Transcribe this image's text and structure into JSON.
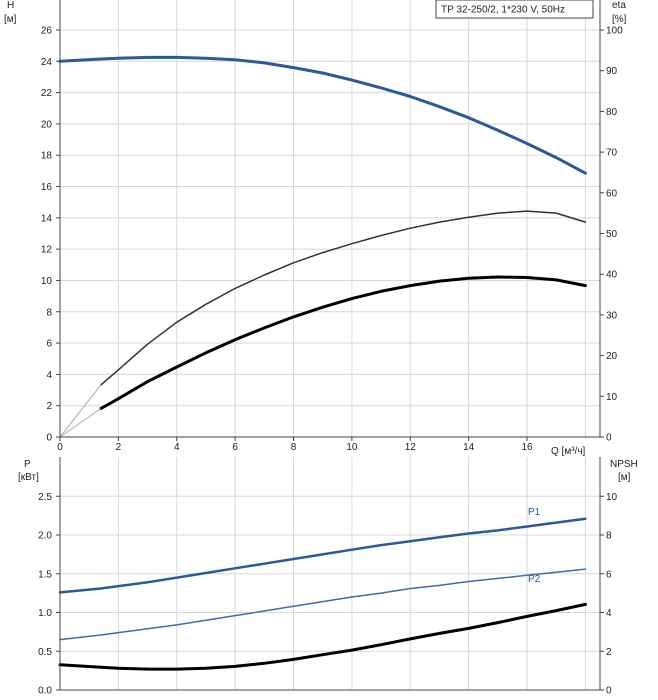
{
  "chart_data": [
    {
      "type": "line",
      "title": "TP 32-250/2, 1*230 V, 50Hz",
      "xlabel": "Q [м³/ч]",
      "ylabel_left": [
        "H",
        "[м]"
      ],
      "ylabel_right": [
        "eta",
        "[%]"
      ],
      "xlim": [
        0,
        18.5
      ],
      "ylim_left": [
        0,
        26
      ],
      "ylim_right": [
        0,
        100
      ],
      "x_ticks": [
        0,
        2,
        4,
        6,
        8,
        10,
        12,
        14,
        16
      ],
      "y_ticks_left": [
        0,
        2,
        4,
        6,
        8,
        10,
        12,
        14,
        16,
        18,
        20,
        22,
        24,
        26
      ],
      "y_ticks_right": [
        0,
        10,
        20,
        30,
        40,
        50,
        60,
        70,
        80,
        90,
        100
      ],
      "grid": true,
      "series": [
        {
          "axis": "left",
          "color": "#2a5a9a",
          "width": 3,
          "x": [
            0,
            1.4,
            2,
            3,
            4,
            5,
            6,
            7,
            8,
            9,
            10,
            11,
            12,
            13,
            14,
            15,
            16,
            17,
            18
          ],
          "y": [
            24.0,
            24.15,
            24.2,
            24.25,
            24.25,
            24.2,
            24.1,
            23.9,
            23.6,
            23.25,
            22.8,
            22.3,
            21.75,
            21.1,
            20.4,
            19.6,
            18.75,
            17.85,
            16.85
          ]
        },
        {
          "axis": "right",
          "color": "#333333",
          "width": 1.5,
          "x": [
            1.4,
            2,
            3,
            4,
            5,
            6,
            7,
            8,
            9,
            10,
            11,
            12,
            13,
            14,
            15,
            16,
            17,
            18
          ],
          "y": [
            12.8,
            16.5,
            22.8,
            28.2,
            32.6,
            36.5,
            39.8,
            42.8,
            45.3,
            47.5,
            49.5,
            51.3,
            52.8,
            54.0,
            55.0,
            55.5,
            55.0,
            52.8
          ]
        },
        {
          "axis": "right",
          "color": "#000000",
          "width": 3,
          "x": [
            1.4,
            2,
            3,
            4,
            5,
            6,
            7,
            8,
            9,
            10,
            11,
            12,
            13,
            14,
            15,
            16,
            17,
            18
          ],
          "y": [
            7.0,
            9.4,
            13.6,
            17.2,
            20.7,
            23.9,
            26.8,
            29.5,
            31.9,
            34.0,
            35.8,
            37.2,
            38.3,
            39.0,
            39.3,
            39.2,
            38.6,
            37.2
          ]
        }
      ]
    },
    {
      "type": "line",
      "xlabel": "",
      "ylabel_left": [
        "P",
        "[кВт]"
      ],
      "ylabel_right": [
        "NPSH",
        "[м]"
      ],
      "xlim": [
        0,
        18.5
      ],
      "ylim_left": [
        0,
        2.8
      ],
      "ylim_right": [
        0,
        11.2
      ],
      "y_ticks_left": [
        0.0,
        0.5,
        1.0,
        1.5,
        2.0,
        2.5
      ],
      "y_ticks_left_labels": [
        "0.0",
        "0.5",
        "1.0",
        "1.5",
        "2.0",
        "2.5"
      ],
      "y_ticks_right": [
        0,
        2,
        4,
        6,
        8,
        10
      ],
      "grid": true,
      "series": [
        {
          "name": "P1",
          "axis": "left",
          "color": "#2a5a9a",
          "width": 2.5,
          "x": [
            0,
            1.4,
            2,
            3,
            4,
            5,
            6,
            7,
            8,
            9,
            10,
            11,
            12,
            13,
            14,
            15,
            16,
            17,
            18
          ],
          "y": [
            1.26,
            1.31,
            1.34,
            1.39,
            1.45,
            1.51,
            1.57,
            1.63,
            1.69,
            1.75,
            1.81,
            1.87,
            1.92,
            1.97,
            2.02,
            2.06,
            2.11,
            2.16,
            2.21
          ]
        },
        {
          "name": "P2",
          "axis": "left",
          "color": "#3d6ea8",
          "width": 1.5,
          "x": [
            0,
            1.4,
            2,
            3,
            4,
            5,
            6,
            7,
            8,
            9,
            10,
            11,
            12,
            13,
            14,
            15,
            16,
            17,
            18
          ],
          "y": [
            0.65,
            0.71,
            0.74,
            0.79,
            0.84,
            0.9,
            0.96,
            1.02,
            1.08,
            1.14,
            1.2,
            1.25,
            1.31,
            1.35,
            1.4,
            1.44,
            1.48,
            1.52,
            1.56
          ]
        },
        {
          "axis": "right",
          "color": "#000000",
          "width": 3,
          "x": [
            0,
            1.4,
            2,
            3,
            4,
            5,
            6,
            7,
            8,
            9,
            10,
            11,
            12,
            13,
            14,
            15,
            16,
            17,
            18
          ],
          "y": [
            1.3,
            1.17,
            1.12,
            1.08,
            1.08,
            1.12,
            1.22,
            1.38,
            1.58,
            1.82,
            2.06,
            2.34,
            2.64,
            2.92,
            3.18,
            3.48,
            3.8,
            4.1,
            4.42
          ]
        }
      ]
    }
  ]
}
